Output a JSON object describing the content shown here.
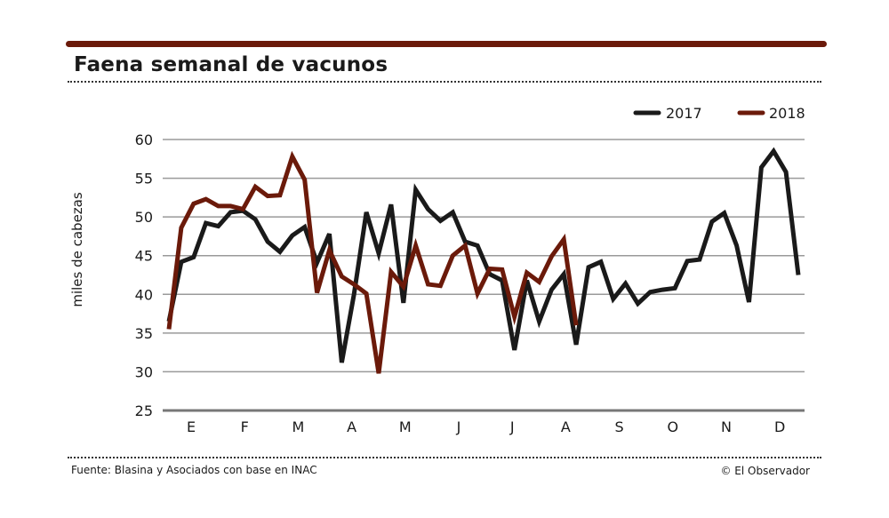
{
  "title": "Faena semanal de vacunos",
  "source": "Fuente: Blasina y Asociados con base en INAC",
  "credit": "© El Observador",
  "colors": {
    "bar": "#6b1a0a",
    "s2017": "#1a1a1a",
    "s2018": "#6b1a0a",
    "grid": "#9a9a9a"
  },
  "chart_data": {
    "type": "line",
    "title": "Faena semanal de vacunos",
    "xlabel": "",
    "ylabel": "miles de cabezas",
    "ylim": [
      25,
      60
    ],
    "yticks": [
      25,
      30,
      35,
      40,
      45,
      50,
      55,
      60
    ],
    "month_labels": [
      "E",
      "F",
      "M",
      "A",
      "M",
      "J",
      "J",
      "A",
      "S",
      "O",
      "N",
      "D"
    ],
    "legend_position": "top-right",
    "grid": true,
    "series": [
      {
        "name": "2017",
        "color": "#1a1a1a",
        "values": [
          36.5,
          44.2,
          44.8,
          49.2,
          48.8,
          50.6,
          50.8,
          49.7,
          46.8,
          45.5,
          47.6,
          48.7,
          44.1,
          47.8,
          31.2,
          40.0,
          50.6,
          45.3,
          51.6,
          38.9,
          53.5,
          51.0,
          49.5,
          50.6,
          46.8,
          46.3,
          42.6,
          41.8,
          32.8,
          41.8,
          36.5,
          40.6,
          42.6,
          33.5,
          43.5,
          44.2,
          39.4,
          41.4,
          38.8,
          40.3,
          40.6,
          40.8,
          44.3,
          44.5,
          49.4,
          50.5,
          46.3,
          39.0,
          56.4,
          58.5,
          55.8,
          42.5
        ]
      },
      {
        "name": "2018",
        "color": "#6b1a0a",
        "values": [
          35.5,
          48.6,
          51.7,
          52.3,
          51.4,
          51.4,
          51.0,
          53.9,
          52.7,
          52.8,
          57.8,
          54.8,
          40.2,
          45.7,
          42.3,
          41.3,
          40.1,
          29.8,
          42.9,
          41.0,
          46.3,
          41.3,
          41.1,
          45.0,
          46.3,
          40.1,
          43.3,
          43.2,
          37.1,
          42.8,
          41.6,
          44.9,
          47.1,
          36.0
        ]
      }
    ]
  }
}
